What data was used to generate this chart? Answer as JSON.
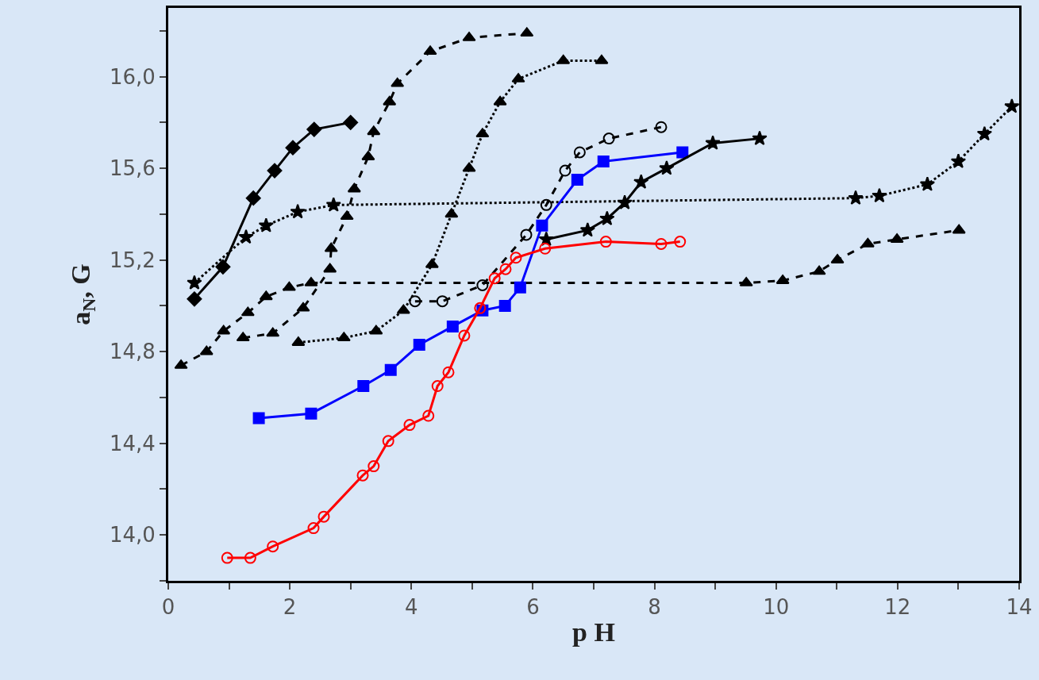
{
  "chart_data": {
    "type": "line",
    "xlabel": "p H",
    "ylabel": "a$_{N}$, G",
    "xlim": [
      0,
      14
    ],
    "ylim": [
      13.8,
      16.3
    ],
    "xticks": [
      0,
      {
        "value": 1,
        "label": null
      },
      2,
      {
        "value": 3,
        "label": null
      },
      4,
      {
        "value": 5,
        "label": null
      },
      6,
      {
        "value": 7,
        "label": null
      },
      8,
      {
        "value": 9,
        "label": null
      },
      10,
      {
        "value": 11,
        "label": null
      },
      12,
      {
        "value": 13,
        "label": null
      },
      14
    ],
    "yticks": [
      {
        "value": 13.8,
        "label": null
      },
      {
        "value": 14.0,
        "label": "14,0"
      },
      {
        "value": 14.2,
        "label": null
      },
      {
        "value": 14.4,
        "label": "14,4"
      },
      {
        "value": 14.6,
        "label": null
      },
      {
        "value": 14.8,
        "label": "14,8"
      },
      {
        "value": 15.0,
        "label": null
      },
      {
        "value": 15.2,
        "label": "15,2"
      },
      {
        "value": 15.4,
        "label": null
      },
      {
        "value": 15.6,
        "label": "15,6"
      },
      {
        "value": 15.8,
        "label": null
      },
      {
        "value": 16.0,
        "label": "16,0"
      },
      {
        "value": 16.2,
        "label": null
      }
    ],
    "grid": false,
    "series": [
      {
        "color": "#000000",
        "marker": "diamond",
        "line_style": "solid",
        "x": [
          0.43,
          0.9,
          1.4,
          1.75,
          2.05,
          2.4,
          3.0
        ],
        "values": [
          15.03,
          15.17,
          15.47,
          15.59,
          15.69,
          15.77,
          15.8
        ]
      },
      {
        "color": "#000000",
        "marker": "star",
        "line_style": "dotted",
        "x": [
          0.43,
          1.28,
          1.61,
          2.13,
          2.72,
          11.31,
          11.7,
          12.49,
          13.0,
          13.43,
          13.88
        ],
        "values": [
          15.1,
          15.3,
          15.35,
          15.41,
          15.44,
          15.47,
          15.48,
          15.53,
          15.63,
          15.75,
          15.87
        ]
      },
      {
        "color": "#000000",
        "marker": "triangle",
        "line_style": "dashed",
        "x": [
          1.23,
          1.72,
          2.22,
          2.66,
          2.68,
          2.94,
          3.06,
          3.29,
          3.38,
          3.64,
          3.77,
          4.31,
          4.95,
          5.9
        ],
        "values": [
          14.86,
          14.88,
          14.99,
          15.16,
          15.25,
          15.39,
          15.51,
          15.65,
          15.76,
          15.89,
          15.97,
          16.11,
          16.17,
          16.19
        ]
      },
      {
        "color": "#000000",
        "marker": "triangle",
        "line_style": "dashed",
        "x": [
          0.21,
          0.63,
          0.91,
          1.31,
          1.61,
          1.99,
          2.35,
          9.51,
          10.11,
          10.71,
          11.01,
          11.51,
          11.99,
          13.01
        ],
        "values": [
          14.74,
          14.8,
          14.89,
          14.97,
          15.04,
          15.08,
          15.1,
          15.1,
          15.11,
          15.15,
          15.2,
          15.27,
          15.29,
          15.33
        ]
      },
      {
        "color": "#000000",
        "marker": "triangle",
        "line_style": "dotted",
        "x": [
          2.14,
          2.89,
          3.42,
          3.87,
          4.34,
          4.66,
          4.95,
          5.17,
          5.46,
          5.76,
          6.5,
          7.13
        ],
        "values": [
          14.84,
          14.86,
          14.89,
          14.98,
          15.18,
          15.4,
          15.6,
          15.75,
          15.89,
          15.99,
          16.07,
          16.07
        ]
      },
      {
        "color": "#000000",
        "marker": "circle",
        "line_style": "dashed",
        "x": [
          4.06,
          4.51,
          5.17,
          5.89,
          6.22,
          6.53,
          6.77,
          7.25,
          8.11
        ],
        "values": [
          15.02,
          15.02,
          15.09,
          15.31,
          15.44,
          15.59,
          15.67,
          15.73,
          15.78
        ]
      },
      {
        "color": "#0000ff",
        "marker": "square",
        "line_style": "solid",
        "x": [
          1.49,
          2.35,
          3.21,
          3.66,
          4.13,
          4.68,
          5.17,
          5.54,
          5.79,
          6.15,
          6.73,
          7.16,
          8.46
        ],
        "values": [
          14.51,
          14.53,
          14.65,
          14.72,
          14.83,
          14.91,
          14.98,
          15.0,
          15.08,
          15.35,
          15.55,
          15.63,
          15.67
        ]
      },
      {
        "color": "#000000",
        "marker": "star",
        "line_style": "solid",
        "x": [
          6.22,
          6.9,
          7.22,
          7.51,
          7.78,
          8.2,
          8.96,
          9.73
        ],
        "values": [
          15.29,
          15.33,
          15.38,
          15.45,
          15.54,
          15.6,
          15.71,
          15.73
        ]
      },
      {
        "color": "#ff0000",
        "marker": "circle",
        "line_style": "solid",
        "x": [
          0.97,
          1.35,
          1.72,
          2.39,
          2.56,
          3.2,
          3.38,
          3.62,
          3.97,
          4.28,
          4.43,
          4.61,
          4.87,
          5.13,
          5.37,
          5.55,
          5.72,
          6.2,
          7.2,
          8.11,
          8.42
        ],
        "values": [
          13.9,
          13.9,
          13.95,
          14.03,
          14.08,
          14.26,
          14.3,
          14.41,
          14.48,
          14.52,
          14.65,
          14.71,
          14.87,
          14.99,
          15.12,
          15.16,
          15.21,
          15.25,
          15.28,
          15.27,
          15.28
        ]
      }
    ]
  }
}
